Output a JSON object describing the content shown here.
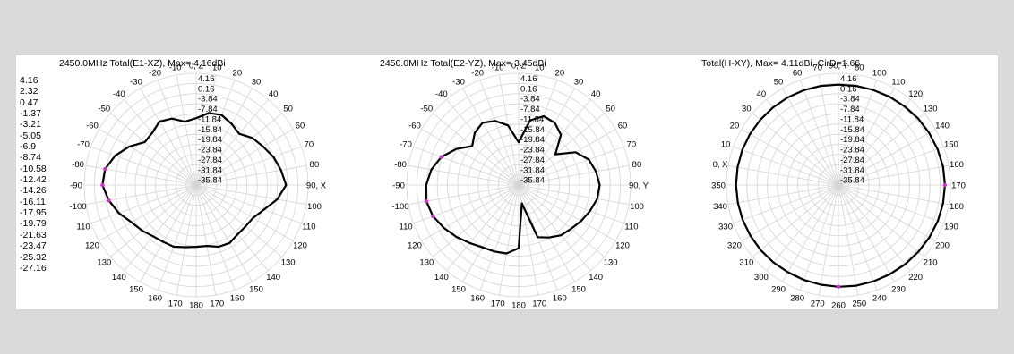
{
  "colors": {
    "background": "#d9d9d9",
    "panel": "#ffffff",
    "grid": "#d4d4d4",
    "curve": "#000000",
    "marker": "#cc33cc"
  },
  "legend_scale": [
    "4.16",
    "2.32",
    "0.47",
    "-1.37",
    "-3.21",
    "-5.05",
    "-6.9",
    "-8.74",
    "-10.58",
    "-12.42",
    "-14.26",
    "-16.11",
    "-17.95",
    "-19.79",
    "-21.63",
    "-23.47",
    "-25.32",
    "-27.16"
  ],
  "chart_data": [
    {
      "type": "polar-line",
      "title": "2450.0MHz Total(E1-XZ), Max= 4.16dBi",
      "radial_ticks": [
        "4.16",
        "0.16",
        "-3.84",
        "-7.84",
        "-11.84",
        "-15.84",
        "-19.84",
        "-23.84",
        "-27.84",
        "-31.84",
        "-35.84"
      ],
      "radial_range": [
        -39.84,
        4.16
      ],
      "angle_labels": [
        "0, Z",
        "10",
        "20",
        "30",
        "40",
        "50",
        "60",
        "70",
        "80",
        "90, X",
        "100",
        "110",
        "120",
        "130",
        "140",
        "150",
        "160",
        "170",
        "180",
        "170",
        "160",
        "150",
        "140",
        "130",
        "120",
        "110",
        "-100",
        "-90",
        "-80",
        "-70",
        "-60",
        "-50",
        "-40",
        "-30",
        "-20",
        "-10"
      ],
      "angle_direction": "clockwise",
      "series": [
        {
          "angle_deg": [
            0,
            10,
            20,
            30,
            40,
            50,
            60,
            70,
            80,
            90,
            100,
            110,
            120,
            130,
            140,
            150,
            160,
            170,
            180,
            190,
            200,
            210,
            220,
            230,
            240,
            250,
            260,
            270,
            280,
            290,
            300,
            310,
            320,
            330,
            340,
            350
          ],
          "gain_dbi": [
            -13.5,
            -11.0,
            -10.5,
            -12.0,
            -13.5,
            -11.0,
            -9.5,
            -7.5,
            -6.0,
            -4.5,
            -7.5,
            -11.5,
            -14.0,
            -14.5,
            -14.5,
            -13.5,
            -14.0,
            -15.5,
            -15.5,
            -15.0,
            -14.0,
            -14.0,
            -13.5,
            -12.0,
            -10.5,
            -7.5,
            -5.0,
            -3.0,
            -3.5,
            -6.0,
            -9.5,
            -13.5,
            -13.0,
            -11.0,
            -12.0,
            -14.5
          ]
        }
      ],
      "markers_deg": [
        -80,
        -90,
        -100
      ]
    },
    {
      "type": "polar-line",
      "title": "2450.0MHz Total(E2-YZ), Max= 3.45dBi",
      "radial_ticks": [
        "4.16",
        "0.16",
        "-3.84",
        "-7.84",
        "-11.84",
        "-15.84",
        "-19.84",
        "-23.84",
        "-27.84",
        "-31.84",
        "-35.84"
      ],
      "radial_range": [
        -39.84,
        4.16
      ],
      "angle_labels": [
        "0, Z",
        "10",
        "20",
        "30",
        "40",
        "50",
        "60",
        "70",
        "80",
        "90, Y",
        "100",
        "110",
        "120",
        "130",
        "140",
        "150",
        "160",
        "170",
        "180",
        "170",
        "160",
        "150",
        "140",
        "130",
        "120",
        "110",
        "-100",
        "-90",
        "-80",
        "-70",
        "-60",
        "-50",
        "-40",
        "-30",
        "-20",
        "-10"
      ],
      "angle_direction": "clockwise",
      "series": [
        {
          "angle_deg": [
            0,
            10,
            20,
            30,
            40,
            50,
            60,
            70,
            80,
            90,
            100,
            110,
            120,
            130,
            140,
            150,
            160,
            170,
            180,
            190,
            200,
            210,
            220,
            230,
            240,
            250,
            260,
            270,
            280,
            290,
            300,
            310,
            320,
            330,
            340,
            350
          ],
          "gain_dbi": [
            -23.0,
            -14.0,
            -11.0,
            -11.5,
            -14.0,
            -21.0,
            -14.0,
            -10.5,
            -9.0,
            -8.0,
            -8.5,
            -10.0,
            -11.5,
            -13.0,
            -14.0,
            -16.0,
            -18.0,
            -32.5,
            -15.0,
            -12.5,
            -12.0,
            -11.5,
            -10.0,
            -8.0,
            -6.0,
            -4.0,
            -3.0,
            -3.5,
            -5.0,
            -7.5,
            -11.5,
            -16.0,
            -13.0,
            -11.5,
            -13.0,
            -16.0
          ]
        }
      ],
      "markers_deg": [
        -70,
        -100,
        -110
      ]
    },
    {
      "type": "polar-line",
      "title": "Total(H-XY), Max= 4.11dBi, CirD=1.66",
      "radial_ticks": [
        "4.16",
        "0.16",
        "-3.84",
        "-7.84",
        "-11.84",
        "-15.84",
        "-19.84",
        "-23.84",
        "-27.84",
        "-31.84",
        "-35.84"
      ],
      "radial_range": [
        -39.84,
        4.16
      ],
      "angle_labels": [
        "90, Y",
        "70",
        "60",
        "50",
        "40",
        "30",
        "20",
        "10",
        "0, X",
        "350",
        "340",
        "330",
        "320",
        "310",
        "300",
        "290",
        "280",
        "270",
        "260",
        "250",
        "240",
        "230",
        "220",
        "210",
        "200",
        "190",
        "180",
        "170",
        "160",
        "150",
        "140",
        "130",
        "120",
        "110",
        "100",
        "80"
      ],
      "angle_direction": "counterclockwise",
      "series": [
        {
          "angle_deg": [
            0,
            10,
            20,
            30,
            40,
            50,
            60,
            70,
            80,
            90,
            100,
            110,
            120,
            130,
            140,
            150,
            160,
            170,
            180,
            190,
            200,
            210,
            220,
            230,
            240,
            250,
            260,
            270,
            280,
            290,
            300,
            310,
            320,
            330,
            340,
            350
          ],
          "gain_dbi": [
            -0.3,
            -0.2,
            -0.1,
            0.0,
            0.1,
            0.2,
            0.3,
            0.4,
            0.4,
            0.4,
            0.3,
            0.2,
            0.1,
            0.0,
            -0.1,
            -0.2,
            -0.1,
            0.0,
            0.2,
            0.4,
            0.5,
            0.7,
            0.9,
            1.1,
            1.4,
            1.7,
            1.9,
            2.0,
            1.9,
            1.6,
            1.3,
            1.0,
            0.6,
            0.3,
            0.0,
            -0.2
          ]
        }
      ],
      "markers_deg": [
        180,
        270
      ]
    }
  ]
}
